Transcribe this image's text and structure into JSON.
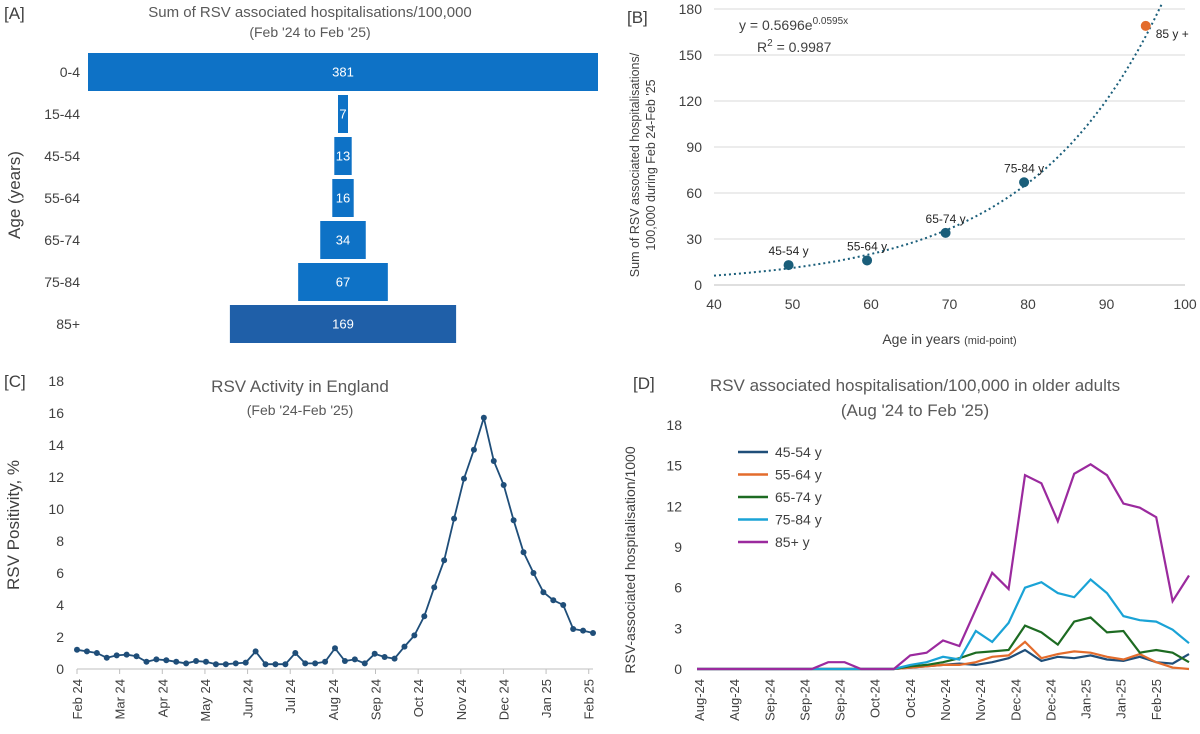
{
  "panels": {
    "a": "[A]",
    "b": "[B]",
    "c": "[C]",
    "d": "[D]"
  },
  "chart_data": [
    {
      "id": "A",
      "type": "bar",
      "orientation": "horizontal",
      "title": "Sum of RSV associated hospitalisations/100,000",
      "subtitle": "(Feb '24 to Feb '25)",
      "ylabel": "Age (years)",
      "categories": [
        "0-4",
        "15-44",
        "45-54",
        "55-64",
        "65-74",
        "75-84",
        "85+"
      ],
      "values": [
        381,
        7,
        13,
        16,
        34,
        67,
        169
      ],
      "data_labels": [
        "381",
        "7",
        "13",
        "16",
        "34",
        "67",
        "169"
      ],
      "colors": {
        "bar": "#0E72C6",
        "bar_last": "#1F5FA8"
      }
    },
    {
      "id": "B",
      "type": "scatter",
      "xlabel": "Age in years",
      "xlabel_note": "(mid-point)",
      "ylabel_lines": [
        "Sum of RSV associated hospitalisations/",
        "100,000 during  Feb 24-Feb '25"
      ],
      "xlim": [
        40,
        100
      ],
      "ylim": [
        0,
        180
      ],
      "xticks": [
        "40",
        "50",
        "60",
        "70",
        "80",
        "90",
        "100"
      ],
      "yticks": [
        "0",
        "30",
        "60",
        "90",
        "120",
        "150",
        "180"
      ],
      "points": [
        {
          "label": "45-54 y",
          "x": 49.5,
          "y": 13,
          "color": "#1A5E7A"
        },
        {
          "label": "55-64 y",
          "x": 59.5,
          "y": 16,
          "color": "#1A5E7A"
        },
        {
          "label": "65-74 y",
          "x": 69.5,
          "y": 34,
          "color": "#1A5E7A"
        },
        {
          "label": "75-84 y",
          "x": 79.5,
          "y": 67,
          "color": "#1A5E7A"
        },
        {
          "label": "85 y +",
          "x": 95,
          "y": 169,
          "color": "#E36C2C"
        }
      ],
      "trendline": {
        "a": 0.5696,
        "b": 0.0595,
        "x_from": 40,
        "x_to": 97
      },
      "equation": {
        "base": "y = 0.5696e",
        "exp": "0.0595x",
        "r2_prefix": "R",
        "r2_sup": "2",
        "r2_value": " = 0.9987"
      }
    },
    {
      "id": "C",
      "type": "line",
      "title": "RSV Activity in England",
      "subtitle": "(Feb '24-Feb '25)",
      "ylabel": "RSV Positivity, %",
      "ylim": [
        0,
        18
      ],
      "yticks": [
        "0",
        "2",
        "4",
        "6",
        "8",
        "10",
        "12",
        "14",
        "16",
        "18"
      ],
      "xticks": [
        "Feb 24",
        "Mar 24",
        "Apr 24",
        "May 24",
        "Jun 24",
        "Jul 24",
        "Aug 24",
        "Sep 24",
        "Oct 24",
        "Nov 24",
        "Dec 24",
        "Jan 25",
        "Feb 25"
      ],
      "series": [
        {
          "color": "#1F4E79",
          "values": [
            1.2,
            1.1,
            1.0,
            0.7,
            0.85,
            0.9,
            0.8,
            0.45,
            0.6,
            0.55,
            0.45,
            0.35,
            0.5,
            0.45,
            0.3,
            0.3,
            0.35,
            0.4,
            1.1,
            0.3,
            0.3,
            0.3,
            1.0,
            0.35,
            0.35,
            0.45,
            1.3,
            0.5,
            0.6,
            0.35,
            0.95,
            0.75,
            0.65,
            1.4,
            2.1,
            3.3,
            5.1,
            6.8,
            9.4,
            11.9,
            13.7,
            15.7,
            13.0,
            11.5,
            9.3,
            7.3,
            6.0,
            4.8,
            4.3,
            4.0,
            2.5,
            2.4,
            2.25
          ]
        }
      ]
    },
    {
      "id": "D",
      "type": "line",
      "title": "RSV associated hospitalisation/100,000  in older adults",
      "subtitle": "(Aug '24 to Feb '25)",
      "ylabel": "RSV-associated hospitalisation/1000",
      "ylim": [
        0,
        18
      ],
      "yticks": [
        "0",
        "3",
        "6",
        "9",
        "12",
        "15",
        "18"
      ],
      "xticks": [
        "Aug-24",
        "Aug-24",
        "Sep-24",
        "Sep-24",
        "Sep-24",
        "Oct-24",
        "Oct-24",
        "Nov-24",
        "Nov-24",
        "Dec-24",
        "Dec-24",
        "Jan-25",
        "Jan-25",
        "Feb-25"
      ],
      "series": [
        {
          "name": "45-54 y",
          "color": "#1F4E79",
          "values": [
            0,
            0,
            0,
            0,
            0,
            0,
            0,
            0,
            0,
            0,
            0,
            0,
            0,
            0.1,
            0.2,
            0.3,
            0.4,
            0.3,
            0.5,
            0.8,
            1.4,
            0.6,
            0.9,
            0.8,
            1.0,
            0.7,
            0.6,
            0.9,
            0.5,
            0.4,
            1.1
          ]
        },
        {
          "name": "55-64 y",
          "color": "#E36C2C",
          "values": [
            0,
            0,
            0,
            0,
            0,
            0,
            0,
            0,
            0,
            0,
            0,
            0,
            0,
            0.1,
            0.2,
            0.3,
            0.3,
            0.5,
            0.9,
            1.0,
            2.0,
            0.8,
            1.1,
            1.3,
            1.2,
            0.9,
            0.7,
            1.1,
            0.5,
            0.1,
            0.0
          ]
        },
        {
          "name": "65-74 y",
          "color": "#1D6B22",
          "values": [
            0,
            0,
            0,
            0,
            0,
            0,
            0,
            0,
            0,
            0,
            0,
            0,
            0,
            0.2,
            0.3,
            0.5,
            0.8,
            1.2,
            1.3,
            1.4,
            3.2,
            2.7,
            1.8,
            3.5,
            3.8,
            2.7,
            2.8,
            1.2,
            1.4,
            1.2,
            0.5
          ]
        },
        {
          "name": "75-84 y",
          "color": "#1AA3D6",
          "values": [
            0,
            0,
            0,
            0,
            0,
            0,
            0,
            0,
            0,
            0,
            0,
            0,
            0,
            0.3,
            0.5,
            0.9,
            0.7,
            2.8,
            2.0,
            3.4,
            6.0,
            6.4,
            5.6,
            5.3,
            6.6,
            5.6,
            3.9,
            3.6,
            3.5,
            2.9,
            1.9
          ]
        },
        {
          "name": "85+ y",
          "color": "#9B2A9E",
          "values": [
            0,
            0,
            0,
            0,
            0,
            0,
            0,
            0,
            0.5,
            0.5,
            0,
            0,
            0,
            1.0,
            1.2,
            2.1,
            1.7,
            4.4,
            7.1,
            5.9,
            14.3,
            13.7,
            10.9,
            14.4,
            15.1,
            14.3,
            12.2,
            11.9,
            11.2,
            5.0,
            6.9
          ]
        }
      ]
    }
  ]
}
